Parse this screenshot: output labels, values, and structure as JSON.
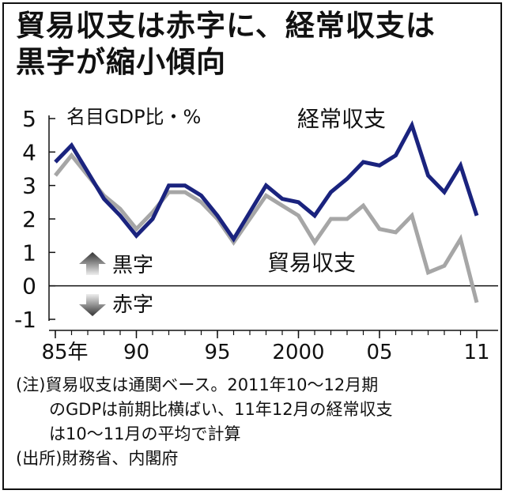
{
  "title": {
    "line1": "貿易収支は赤字に、経常収支は",
    "line2": "黒字が縮小傾向"
  },
  "chart_data": {
    "type": "line",
    "ylabel": "名目GDP比・%",
    "ylim": [
      -1,
      5
    ],
    "yticks": [
      "5",
      "4",
      "3",
      "2",
      "1",
      "0",
      "-1"
    ],
    "xlim": [
      1985,
      2011
    ],
    "xticks": [
      {
        "value": 1985,
        "label": "85年"
      },
      {
        "value": 1990,
        "label": "90"
      },
      {
        "value": 1995,
        "label": "95"
      },
      {
        "value": 2000,
        "label": "2000"
      },
      {
        "value": 2005,
        "label": "05"
      },
      {
        "value": 2011,
        "label": "11"
      }
    ],
    "x": [
      1985,
      1986,
      1987,
      1988,
      1989,
      1990,
      1991,
      1992,
      1993,
      1994,
      1995,
      1996,
      1997,
      1998,
      1999,
      2000,
      2001,
      2002,
      2003,
      2004,
      2005,
      2006,
      2007,
      2008,
      2009,
      2010,
      2011
    ],
    "series": [
      {
        "name": "経常収支",
        "color": "#1a237e",
        "values": [
          3.7,
          4.2,
          3.4,
          2.6,
          2.1,
          1.5,
          2.0,
          3.0,
          3.0,
          2.7,
          2.1,
          1.4,
          2.2,
          3.0,
          2.6,
          2.5,
          2.1,
          2.8,
          3.2,
          3.7,
          3.6,
          3.9,
          4.8,
          3.3,
          2.8,
          3.6,
          2.1
        ]
      },
      {
        "name": "貿易収支",
        "color": "#a6a6a6",
        "values": [
          3.3,
          3.9,
          3.3,
          2.7,
          2.3,
          1.7,
          2.2,
          2.8,
          2.8,
          2.5,
          2.0,
          1.3,
          2.0,
          2.7,
          2.4,
          2.1,
          1.3,
          2.0,
          2.0,
          2.4,
          1.7,
          1.6,
          2.1,
          0.4,
          0.6,
          1.4,
          -0.5
        ]
      }
    ],
    "legend": {
      "surplus": "黒字",
      "deficit": "赤字"
    }
  },
  "notes": [
    "(注)貿易収支は通関ベース。2011年10～12月期",
    "　　のGDPは前期比横ばい、11年12月の経常収支",
    "　　は10～11月の平均で計算",
    "(出所)財務省、内閣府"
  ]
}
